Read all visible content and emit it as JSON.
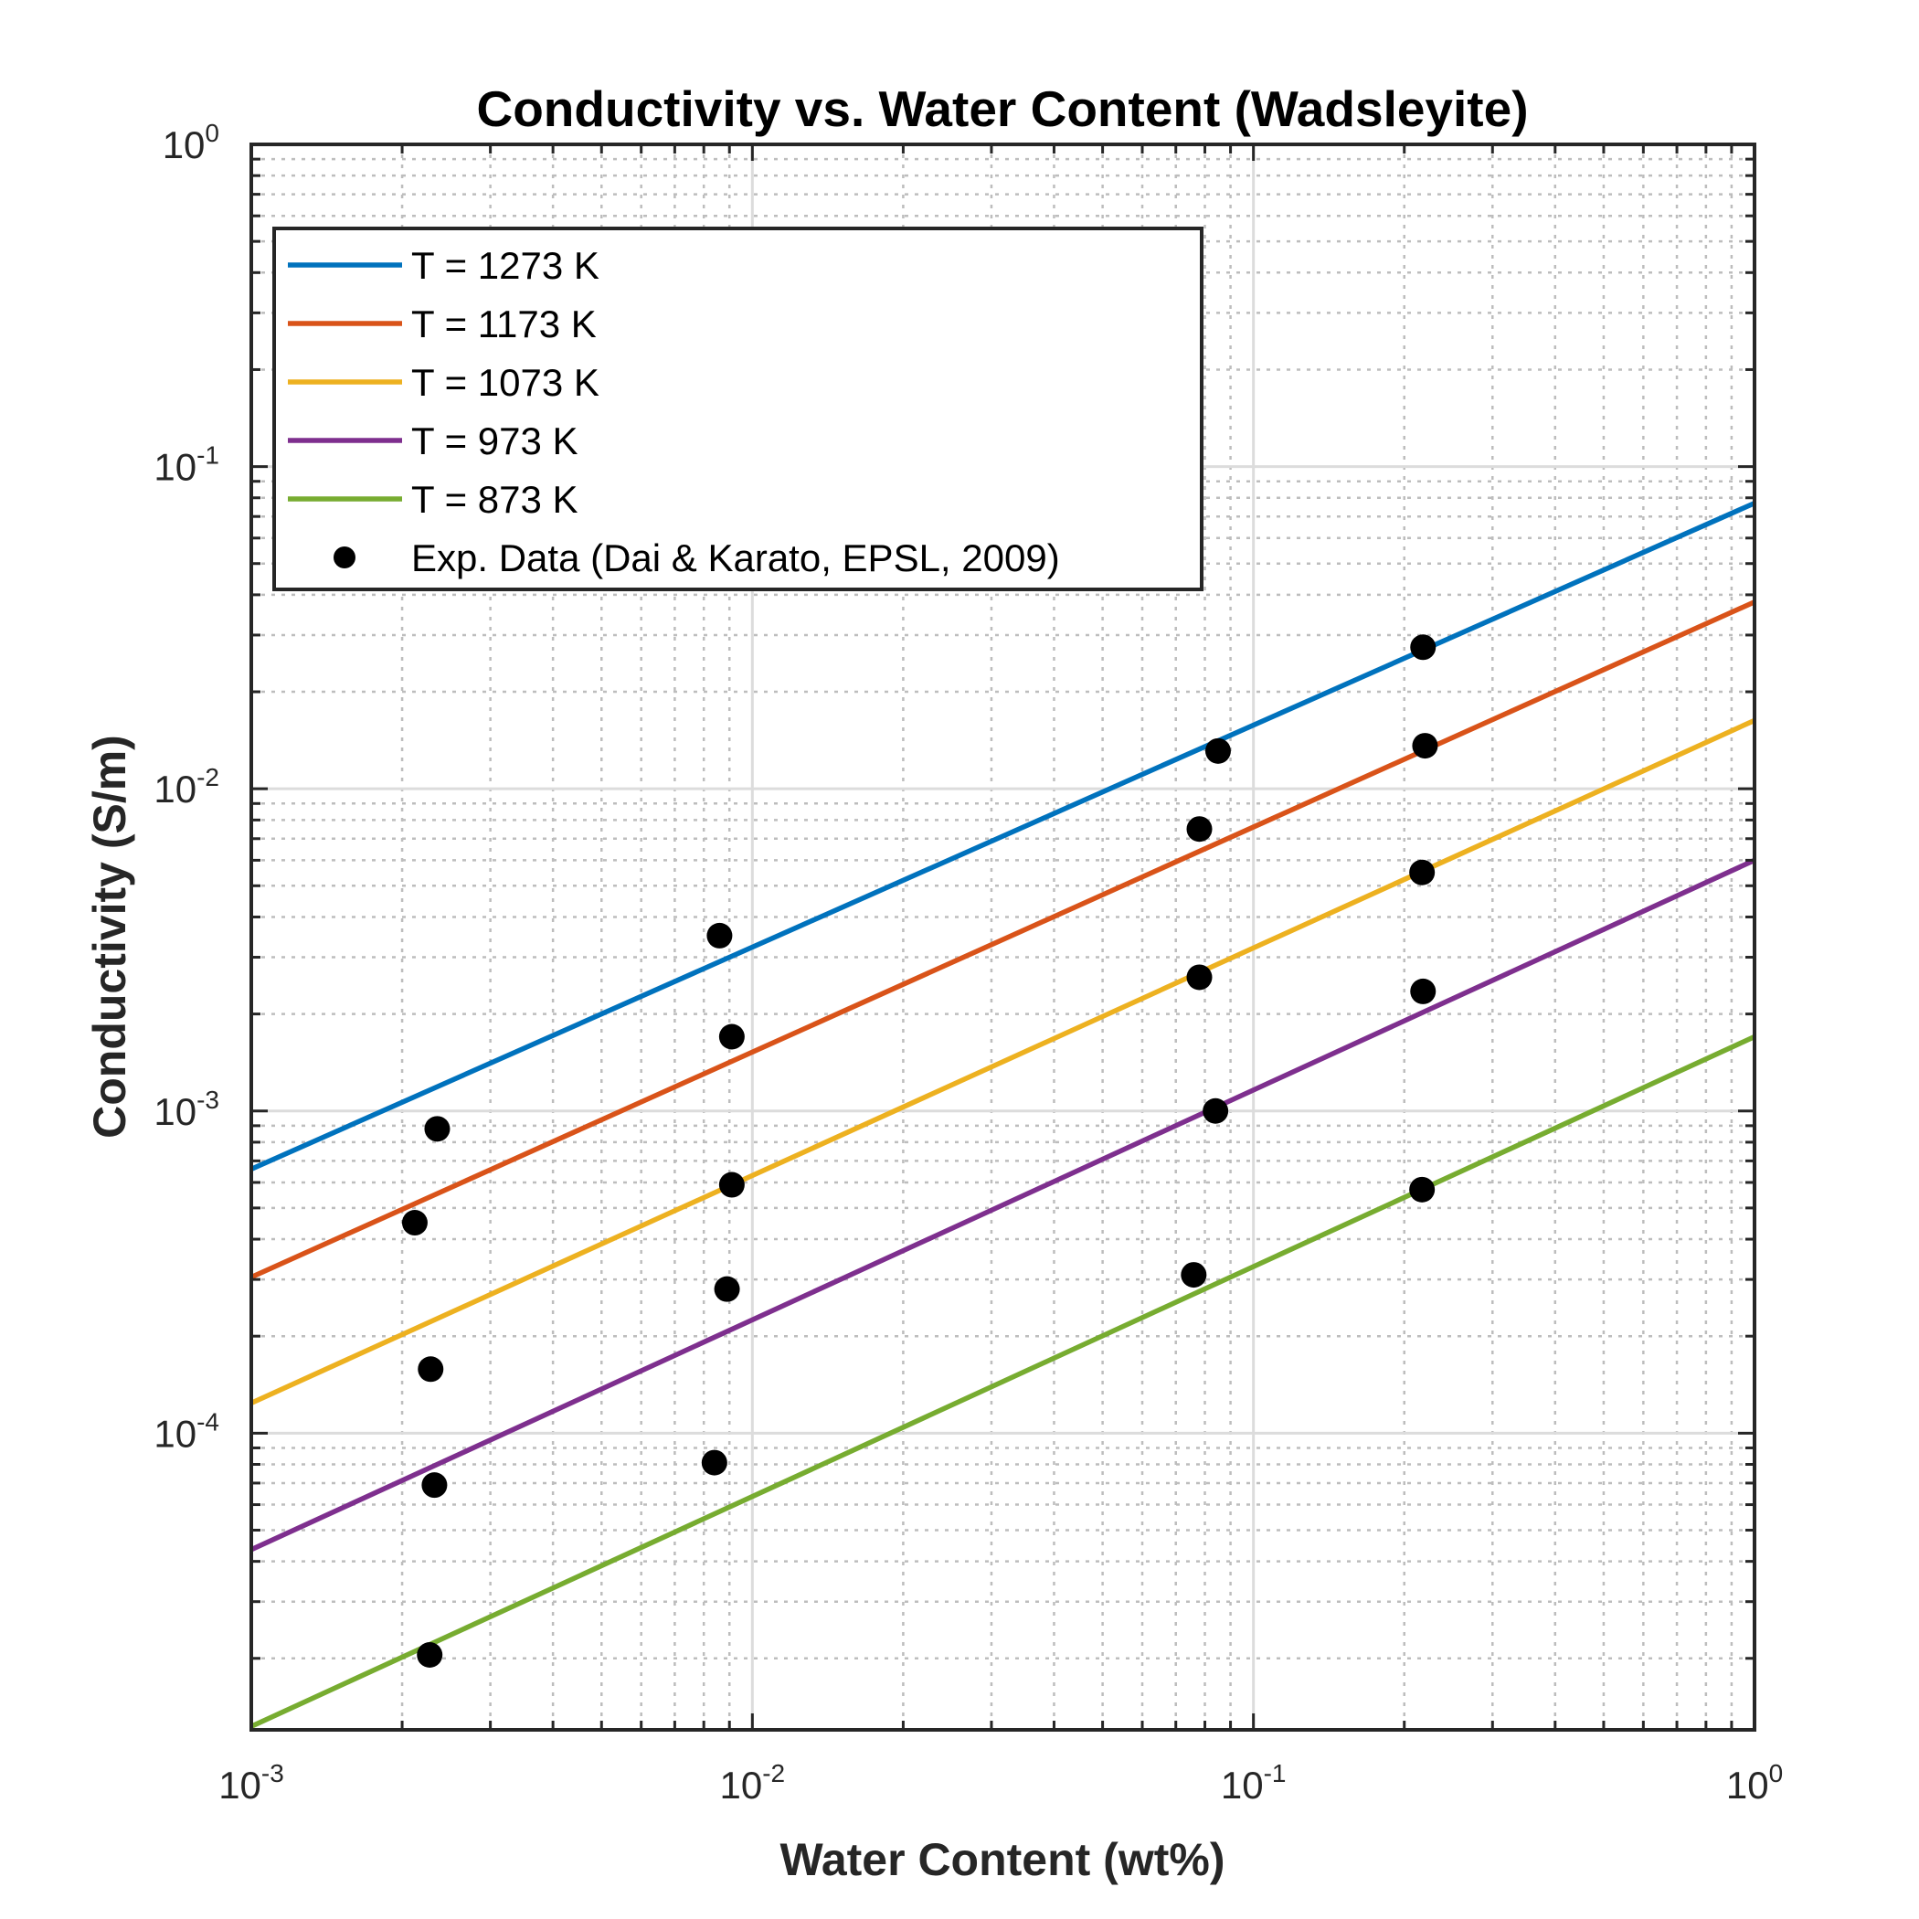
{
  "chart_data": {
    "type": "line",
    "title": "Conductivity vs. Water Content (Wadsleyite)",
    "xlabel": "Water Content (wt%)",
    "ylabel": "Conductivity (S/m)",
    "x_scale": "log",
    "y_scale": "log",
    "xlim": [
      0.001,
      1
    ],
    "ylim": [
      1.2e-05,
      1
    ],
    "grid": "on (major and minor)",
    "legend_location": "top-left",
    "x_ticks": [
      {
        "value": 0.001,
        "base": "10",
        "exp": "-3"
      },
      {
        "value": 0.01,
        "base": "10",
        "exp": "-2"
      },
      {
        "value": 0.1,
        "base": "10",
        "exp": "-1"
      },
      {
        "value": 1,
        "base": "10",
        "exp": "0"
      }
    ],
    "y_ticks": [
      {
        "value": 0.0001,
        "base": "10",
        "exp": "-4"
      },
      {
        "value": 0.001,
        "base": "10",
        "exp": "-3"
      },
      {
        "value": 0.01,
        "base": "10",
        "exp": "-2"
      },
      {
        "value": 0.1,
        "base": "10",
        "exp": "-1"
      },
      {
        "value": 1,
        "base": "10",
        "exp": "0"
      }
    ],
    "series": [
      {
        "name": "T = 1273 K",
        "color": "#0072BD",
        "x": [
          0.001,
          1
        ],
        "y": [
          0.00066,
          0.077
        ]
      },
      {
        "name": "T = 1173 K",
        "color": "#D95319",
        "x": [
          0.001,
          1
        ],
        "y": [
          0.000305,
          0.038
        ]
      },
      {
        "name": "T = 1073 K",
        "color": "#EDB120",
        "x": [
          0.001,
          1
        ],
        "y": [
          0.000124,
          0.0163
        ]
      },
      {
        "name": "T = 973 K",
        "color": "#7E2F8E",
        "x": [
          0.001,
          1
        ],
        "y": [
          4.35e-05,
          0.006
        ]
      },
      {
        "name": "T = 873 K",
        "color": "#77AC30",
        "x": [
          0.001,
          1
        ],
        "y": [
          1.23e-05,
          0.0017
        ]
      }
    ],
    "scatter": {
      "name": "Exp. Data (Dai & Karato, EPSL, 2009)",
      "color": "#000000",
      "points": [
        {
          "x": 0.00235,
          "y": 0.00088
        },
        {
          "x": 0.00212,
          "y": 0.00045
        },
        {
          "x": 0.00228,
          "y": 0.000158
        },
        {
          "x": 0.00232,
          "y": 6.9e-05
        },
        {
          "x": 0.00227,
          "y": 2.05e-05
        },
        {
          "x": 0.0086,
          "y": 0.0035
        },
        {
          "x": 0.0091,
          "y": 0.0017
        },
        {
          "x": 0.0091,
          "y": 0.00059
        },
        {
          "x": 0.0089,
          "y": 0.00028
        },
        {
          "x": 0.0084,
          "y": 8.1e-05
        },
        {
          "x": 0.085,
          "y": 0.0131
        },
        {
          "x": 0.078,
          "y": 0.0075
        },
        {
          "x": 0.078,
          "y": 0.0026
        },
        {
          "x": 0.084,
          "y": 0.001
        },
        {
          "x": 0.076,
          "y": 0.00031
        },
        {
          "x": 0.218,
          "y": 0.0275
        },
        {
          "x": 0.22,
          "y": 0.0136
        },
        {
          "x": 0.217,
          "y": 0.0055
        },
        {
          "x": 0.218,
          "y": 0.00235
        },
        {
          "x": 0.217,
          "y": 0.00057
        }
      ]
    }
  }
}
